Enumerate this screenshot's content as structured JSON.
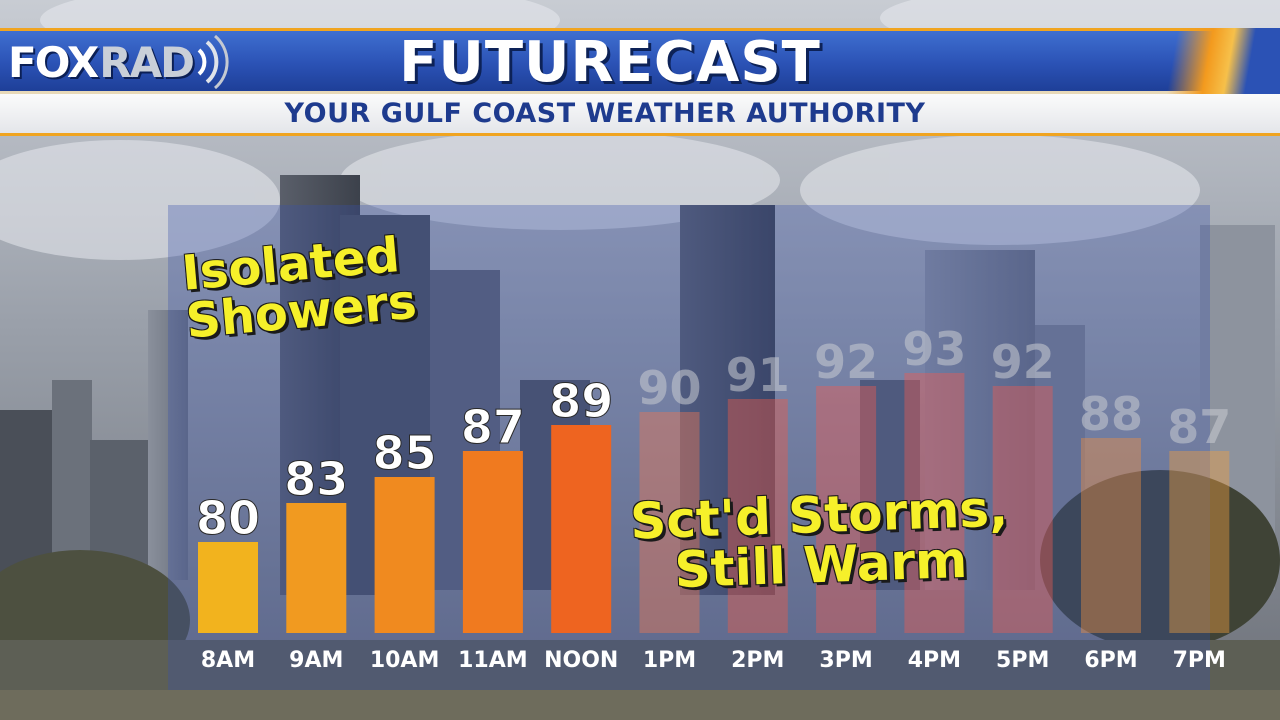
{
  "header": {
    "logo_primary": "FOX",
    "logo_secondary": "RAD",
    "title": "FUTURECAST",
    "subtitle": "YOUR GULF COAST WEATHER AUTHORITY"
  },
  "callouts": {
    "morning": [
      "Isolated",
      "Showers"
    ],
    "afternoon": [
      "Sct'd Storms,",
      "Still Warm"
    ]
  },
  "colors": {
    "header_blue": "#2b52b5",
    "accent_orange": "#f0a420",
    "callout_yellow": "#f6f02a",
    "subtitle_blue": "#1e3b8e",
    "bar_colors": [
      "#f2b31e",
      "#f19a20",
      "#f08a1f",
      "#f07a1f",
      "#ee6420",
      "#f07850",
      "#ee5a48",
      "#ee5a50",
      "#ee5a50",
      "#ee5a50",
      "#f09040",
      "#f0a040"
    ]
  },
  "chart_data": {
    "type": "bar",
    "title": "FUTURECAST",
    "categories": [
      "8AM",
      "9AM",
      "10AM",
      "11AM",
      "NOON",
      "1PM",
      "2PM",
      "3PM",
      "4PM",
      "5PM",
      "6PM",
      "7PM"
    ],
    "values": [
      80,
      83,
      85,
      87,
      89,
      90,
      91,
      92,
      93,
      92,
      88,
      87
    ],
    "value_labels": [
      "80",
      "83",
      "85",
      "87",
      "89",
      "90",
      "91",
      "92",
      "93",
      "92",
      "88",
      "87"
    ],
    "faded_from_index": 5,
    "xlabel": "",
    "ylabel": "",
    "grid": false,
    "legend": "none"
  }
}
